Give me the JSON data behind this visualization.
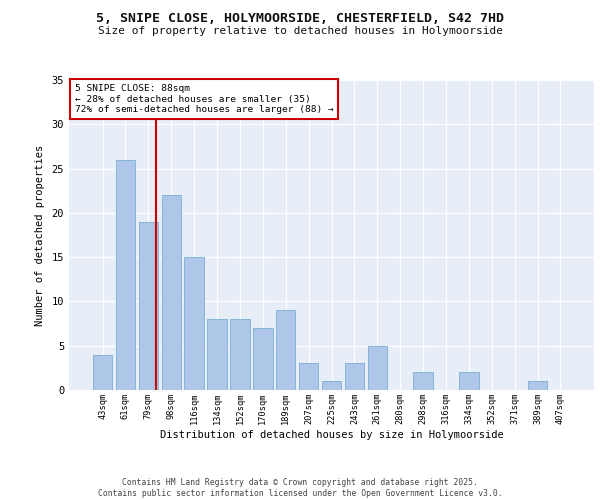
{
  "title": "5, SNIPE CLOSE, HOLYMOORSIDE, CHESTERFIELD, S42 7HD",
  "subtitle": "Size of property relative to detached houses in Holymoorside",
  "xlabel": "Distribution of detached houses by size in Holymoorside",
  "ylabel": "Number of detached properties",
  "categories": [
    "43sqm",
    "61sqm",
    "79sqm",
    "98sqm",
    "116sqm",
    "134sqm",
    "152sqm",
    "170sqm",
    "189sqm",
    "207sqm",
    "225sqm",
    "243sqm",
    "261sqm",
    "280sqm",
    "298sqm",
    "316sqm",
    "334sqm",
    "352sqm",
    "371sqm",
    "389sqm",
    "407sqm"
  ],
  "values": [
    4,
    26,
    19,
    22,
    15,
    8,
    8,
    7,
    9,
    3,
    1,
    3,
    5,
    0,
    2,
    0,
    2,
    0,
    0,
    1,
    0
  ],
  "bar_color": "#aec6e8",
  "bar_edge_color": "#7aadd4",
  "vline_color": "#cc0000",
  "vline_index": 2,
  "annotation_text": "5 SNIPE CLOSE: 88sqm\n← 28% of detached houses are smaller (35)\n72% of semi-detached houses are larger (88) →",
  "annotation_box_color": "#cc0000",
  "ylim": [
    0,
    35
  ],
  "yticks": [
    0,
    5,
    10,
    15,
    20,
    25,
    30,
    35
  ],
  "bg_color": "#e8eef8",
  "footer": "Contains HM Land Registry data © Crown copyright and database right 2025.\nContains public sector information licensed under the Open Government Licence v3.0."
}
